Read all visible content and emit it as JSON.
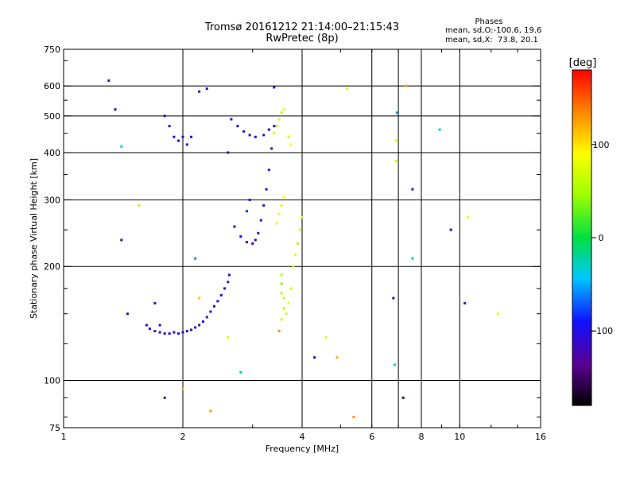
{
  "header": {
    "title_line1": "Tromsø 20161212 21:14:00–21:15:43",
    "title_line2": "RwPretec (8p)"
  },
  "phases": {
    "heading": "Phases",
    "line_o": "mean, sd,O:-100.6, 19.6",
    "line_x": "mean, sd,X:  73.8, 20.1"
  },
  "chart_data": {
    "type": "scatter",
    "xlabel": "Frequency [MHz]",
    "ylabel": "Stationary phase Virtual Height [km]",
    "x_scale": "log",
    "y_scale": "log",
    "xlim": [
      1,
      16
    ],
    "ylim": [
      75,
      750
    ],
    "x_ticks": [
      1,
      2,
      4,
      8,
      16
    ],
    "x_tick_labels": [
      "1",
      "2",
      "4",
      "8",
      "16"
    ],
    "x_minor_labels": [
      {
        "value": 6,
        "label": "6"
      },
      {
        "value": 10,
        "label": "10"
      }
    ],
    "x_gridlines": [
      2,
      4,
      6,
      7,
      8,
      10
    ],
    "y_ticks": [
      75,
      100,
      200,
      300,
      400,
      500,
      600,
      750
    ],
    "y_tick_labels": [
      "75",
      "100",
      "200",
      "300",
      "400",
      "500",
      "600",
      "750"
    ],
    "y_gridlines": [
      100,
      200,
      300,
      400,
      500,
      600
    ],
    "grid": true,
    "colorbar": {
      "label": "[deg]",
      "min": -180,
      "max": 180,
      "ticks": [
        100,
        0,
        -100
      ],
      "tick_labels": [
        "100",
        "0",
        "−100"
      ]
    },
    "series": [
      {
        "points": [
          [
            1.62,
            140,
            -110
          ],
          [
            1.65,
            137,
            -95
          ],
          [
            1.7,
            135,
            -120
          ],
          [
            1.75,
            134,
            -100
          ],
          [
            1.8,
            133,
            -115
          ],
          [
            1.85,
            133,
            -105
          ],
          [
            1.9,
            134,
            -125
          ],
          [
            1.95,
            133,
            -100
          ],
          [
            2.0,
            134,
            -110
          ],
          [
            2.05,
            135,
            -95
          ],
          [
            2.1,
            136,
            -115
          ],
          [
            2.15,
            138,
            -100
          ],
          [
            2.2,
            140,
            -120
          ],
          [
            2.25,
            143,
            -95
          ],
          [
            2.3,
            147,
            -110
          ],
          [
            2.35,
            152,
            -100
          ],
          [
            2.4,
            157,
            -115
          ],
          [
            2.45,
            162,
            -105
          ],
          [
            2.5,
            168,
            -95
          ],
          [
            2.55,
            175,
            -120
          ],
          [
            2.6,
            182,
            -110
          ],
          [
            2.62,
            190,
            -100
          ],
          [
            2.7,
            255,
            -110
          ],
          [
            2.8,
            240,
            -95
          ],
          [
            2.9,
            232,
            -115
          ],
          [
            3.0,
            230,
            -100
          ],
          [
            3.05,
            235,
            -110
          ],
          [
            3.1,
            245,
            -120
          ],
          [
            3.15,
            265,
            -100
          ],
          [
            3.2,
            290,
            -110
          ],
          [
            3.25,
            320,
            -95
          ],
          [
            3.3,
            360,
            -105
          ],
          [
            3.35,
            410,
            -115
          ],
          [
            3.4,
            470,
            -100
          ],
          [
            2.65,
            490,
            -110
          ],
          [
            2.75,
            470,
            -100
          ],
          [
            2.85,
            455,
            -95
          ],
          [
            2.95,
            445,
            -115
          ],
          [
            3.05,
            440,
            -105
          ],
          [
            3.2,
            445,
            -110
          ],
          [
            3.3,
            460,
            -100
          ],
          [
            1.8,
            500,
            -110
          ],
          [
            1.85,
            470,
            -120
          ],
          [
            1.9,
            440,
            -100
          ],
          [
            1.95,
            430,
            -110
          ],
          [
            2.0,
            440,
            -105
          ],
          [
            2.05,
            420,
            -115
          ],
          [
            2.1,
            440,
            -100
          ],
          [
            1.3,
            620,
            -120
          ],
          [
            1.35,
            520,
            -140
          ],
          [
            1.4,
            235,
            -110
          ],
          [
            1.45,
            150,
            -120
          ],
          [
            1.75,
            140,
            -95
          ],
          [
            2.2,
            580,
            -110
          ],
          [
            2.3,
            590,
            -115
          ],
          [
            2.95,
            300,
            -90
          ],
          [
            2.9,
            280,
            -80
          ],
          [
            3.6,
            155,
            60
          ],
          [
            3.65,
            150,
            70
          ],
          [
            3.7,
            160,
            80
          ],
          [
            3.75,
            175,
            65
          ],
          [
            3.8,
            200,
            60
          ],
          [
            3.85,
            215,
            75
          ],
          [
            3.9,
            230,
            55
          ],
          [
            3.95,
            250,
            70
          ],
          [
            4.0,
            270,
            80
          ],
          [
            3.45,
            260,
            75
          ],
          [
            3.5,
            275,
            85
          ],
          [
            3.55,
            290,
            70
          ],
          [
            3.6,
            305,
            90
          ],
          [
            3.4,
            450,
            70
          ],
          [
            3.45,
            470,
            60
          ],
          [
            3.5,
            490,
            75
          ],
          [
            3.55,
            510,
            55
          ],
          [
            3.6,
            520,
            80
          ],
          [
            3.7,
            440,
            70
          ],
          [
            3.75,
            420,
            90
          ],
          [
            3.55,
            180,
            40
          ],
          [
            3.55,
            170,
            50
          ],
          [
            3.55,
            190,
            55
          ],
          [
            3.6,
            165,
            60
          ],
          [
            4.6,
            130,
            75
          ],
          [
            5.2,
            590,
            70
          ],
          [
            6.9,
            430,
            80
          ],
          [
            6.9,
            380,
            70
          ],
          [
            7.3,
            600,
            120
          ],
          [
            6.95,
            510,
            -60
          ],
          [
            7.6,
            210,
            -30
          ],
          [
            7.6,
            320,
            -130
          ],
          [
            8.9,
            460,
            -40
          ],
          [
            9.5,
            250,
            -100
          ],
          [
            10.3,
            160,
            -120
          ],
          [
            10.5,
            270,
            80
          ],
          [
            12.5,
            150,
            85
          ],
          [
            6.8,
            165,
            -110
          ],
          [
            6.85,
            110,
            -20
          ],
          [
            7.2,
            90,
            -150
          ],
          [
            5.4,
            80,
            130
          ],
          [
            2.35,
            83,
            130
          ],
          [
            1.8,
            90,
            -130
          ],
          [
            2.0,
            95,
            120
          ],
          [
            2.2,
            165,
            110
          ],
          [
            2.6,
            130,
            75
          ],
          [
            2.8,
            105,
            -20
          ],
          [
            4.3,
            115,
            -110
          ],
          [
            4.9,
            115,
            120
          ],
          [
            3.55,
            145,
            70
          ],
          [
            3.5,
            135,
            130
          ],
          [
            1.4,
            415,
            -40
          ],
          [
            1.55,
            290,
            100
          ],
          [
            1.7,
            160,
            -110
          ],
          [
            2.15,
            210,
            -60
          ],
          [
            2.6,
            400,
            -110
          ],
          [
            3.4,
            595,
            -110
          ]
        ]
      }
    ]
  }
}
